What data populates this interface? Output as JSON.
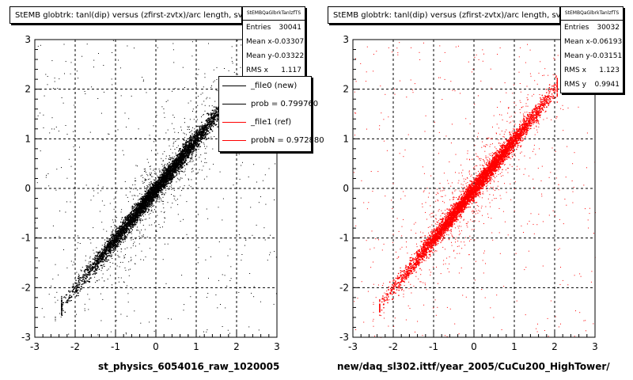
{
  "panels": [
    {
      "title": "StEMB globtrk: tanl(dip) versus (zfirst-zvtx)/arc length, svt",
      "stats": {
        "name": "StEMBQaGlbrkTanlzfTS",
        "rows": [
          {
            "label": "Entries",
            "value": "30041"
          },
          {
            "label": "Mean x",
            "value": "-0.03307"
          },
          {
            "label": "Mean y",
            "value": "-0.03322"
          },
          {
            "label": "RMS x",
            "value": "1.117"
          }
        ]
      },
      "legend": [
        {
          "label": "_file0 (new)",
          "color": "#000000"
        },
        {
          "label": "prob = 0.799760",
          "color": "#000000"
        },
        {
          "label": "_file1 (ref)",
          "color": "#ff0000"
        },
        {
          "label": "probN = 0.972880",
          "color": "#ff0000"
        }
      ],
      "file_label": "st_physics_6054016_raw_1020005"
    },
    {
      "title": "StEMB globtrk: tanl(dip) versus (zfirst-zvtx)/arc length, svt",
      "stats": {
        "name": "StEMBQaGlbrkTanlzfTS",
        "rows": [
          {
            "label": "Entries",
            "value": "30032"
          },
          {
            "label": "Mean x",
            "value": "-0.06193"
          },
          {
            "label": "Mean y",
            "value": "-0.03151"
          },
          {
            "label": "RMS x",
            "value": "1.123"
          },
          {
            "label": "RMS y",
            "value": "0.9941"
          }
        ]
      },
      "file_label": "new/daq_sl302.ittf/year_2005/CuCu200_HighTower/"
    }
  ],
  "chart_data": [
    {
      "type": "scatter",
      "title": "StEMB globtrk: tanl(dip) versus (zfirst-zvtx)/arc length, svt",
      "xlabel": "",
      "ylabel": "",
      "xlim": [
        -3,
        3
      ],
      "ylim": [
        -3,
        3
      ],
      "x_ticks": [
        "-3",
        "-2",
        "-1",
        "0",
        "1",
        "2",
        "3"
      ],
      "y_ticks": [
        "-3",
        "-2",
        "-1",
        "0",
        "1",
        "2",
        "3"
      ],
      "grid": true,
      "series": [
        {
          "color": "#000000",
          "x": [
            -2.3,
            -2.0,
            -1.5,
            -1.0,
            -0.5,
            0.0,
            0.5,
            1.0,
            1.5,
            2.0
          ],
          "y": [
            -2.3,
            -2.0,
            -1.5,
            -1.0,
            -0.5,
            0.0,
            0.5,
            1.0,
            1.5,
            2.0
          ]
        }
      ]
    },
    {
      "type": "scatter",
      "title": "StEMB globtrk: tanl(dip) versus (zfirst-zvtx)/arc length, svt",
      "xlabel": "",
      "ylabel": "",
      "xlim": [
        -3,
        3
      ],
      "ylim": [
        -3,
        3
      ],
      "x_ticks": [
        "-3",
        "-2",
        "-1",
        "0",
        "1",
        "2",
        "3"
      ],
      "y_ticks": [
        "-3",
        "-2",
        "-1",
        "0",
        "1",
        "2",
        "3"
      ],
      "grid": true,
      "series": [
        {
          "color": "#ff0000",
          "x": [
            -2.3,
            -2.0,
            -1.5,
            -1.0,
            -0.5,
            0.0,
            0.5,
            1.0,
            1.5,
            2.0
          ],
          "y": [
            -2.3,
            -2.0,
            -1.5,
            -1.0,
            -0.5,
            0.0,
            0.5,
            1.0,
            1.5,
            2.0
          ]
        }
      ]
    }
  ]
}
